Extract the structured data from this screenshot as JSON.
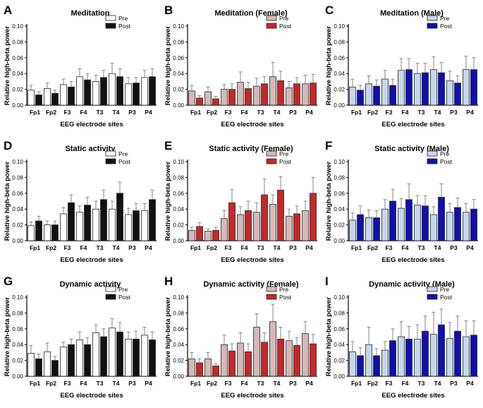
{
  "figure": {
    "shared": {
      "xlabel": "EEG electrode sites",
      "ylabel": "Relative high-beta power",
      "categories": [
        "Fp1",
        "Fp2",
        "F3",
        "F4",
        "T3",
        "T4",
        "P3",
        "P4"
      ],
      "yticks": [
        "0.00",
        "0.02",
        "0.04",
        "0.06",
        "0.08",
        "0.10"
      ],
      "legend": [
        "Pre",
        "Post"
      ]
    }
  },
  "chart_data": [
    {
      "panel": "A",
      "type": "bar",
      "title": "Meditation",
      "xlabel": "EEG electrode sites",
      "ylabel": "Relative high-beta power",
      "ylim": [
        0,
        0.1
      ],
      "categories": [
        "Fp1",
        "Fp2",
        "F3",
        "F4",
        "T3",
        "T4",
        "P3",
        "P4"
      ],
      "series": [
        {
          "name": "Pre",
          "color": "#ffffff",
          "values": [
            0.019,
            0.021,
            0.026,
            0.036,
            0.03,
            0.04,
            0.027,
            0.035
          ],
          "errors": [
            0.006,
            0.007,
            0.007,
            0.01,
            0.008,
            0.013,
            0.008,
            0.009
          ]
        },
        {
          "name": "Post",
          "color": "#111111",
          "values": [
            0.013,
            0.015,
            0.023,
            0.032,
            0.035,
            0.036,
            0.028,
            0.036
          ],
          "errors": [
            0.004,
            0.004,
            0.007,
            0.008,
            0.009,
            0.01,
            0.007,
            0.01
          ]
        }
      ]
    },
    {
      "panel": "B",
      "type": "bar",
      "title": "Meditation (Female)",
      "xlabel": "EEG electrode sites",
      "ylabel": "Relative high-beta power",
      "ylim": [
        0,
        0.1
      ],
      "categories": [
        "Fp1",
        "Fp2",
        "F3",
        "F4",
        "T3",
        "T4",
        "P3",
        "P4"
      ],
      "series": [
        {
          "name": "Pre",
          "color": "#d6b8b8",
          "values": [
            0.018,
            0.017,
            0.02,
            0.029,
            0.024,
            0.036,
            0.022,
            0.027
          ],
          "errors": [
            0.007,
            0.006,
            0.006,
            0.013,
            0.01,
            0.018,
            0.008,
            0.011
          ]
        },
        {
          "name": "Post",
          "color": "#c62828",
          "values": [
            0.009,
            0.008,
            0.02,
            0.021,
            0.027,
            0.031,
            0.027,
            0.028
          ],
          "errors": [
            0.003,
            0.003,
            0.007,
            0.008,
            0.009,
            0.012,
            0.008,
            0.011
          ]
        }
      ]
    },
    {
      "panel": "C",
      "type": "bar",
      "title": "Meditation (Male)",
      "xlabel": "EEG electrode sites",
      "ylabel": "Relative high-beta power",
      "ylim": [
        0,
        0.1
      ],
      "categories": [
        "Fp1",
        "Fp2",
        "F3",
        "F4",
        "T3",
        "T4",
        "P3",
        "P4"
      ],
      "series": [
        {
          "name": "Pre",
          "color": "#c5d7ee",
          "values": [
            0.023,
            0.027,
            0.033,
            0.044,
            0.04,
            0.045,
            0.031,
            0.045
          ],
          "errors": [
            0.01,
            0.01,
            0.011,
            0.015,
            0.013,
            0.016,
            0.012,
            0.017
          ]
        },
        {
          "name": "Post",
          "color": "#1010b0",
          "values": [
            0.019,
            0.024,
            0.025,
            0.045,
            0.041,
            0.041,
            0.028,
            0.045
          ],
          "errors": [
            0.006,
            0.008,
            0.008,
            0.014,
            0.012,
            0.013,
            0.009,
            0.015
          ]
        }
      ]
    },
    {
      "panel": "D",
      "type": "bar",
      "title": "Static activity",
      "xlabel": "EEG electrode sites",
      "ylabel": "Relative high-beta power",
      "ylim": [
        0,
        0.1
      ],
      "categories": [
        "Fp1",
        "Fp2",
        "F3",
        "F4",
        "T3",
        "T4",
        "P3",
        "P4"
      ],
      "series": [
        {
          "name": "Pre",
          "color": "#ffffff",
          "values": [
            0.019,
            0.02,
            0.034,
            0.036,
            0.04,
            0.04,
            0.033,
            0.038
          ],
          "errors": [
            0.005,
            0.005,
            0.008,
            0.008,
            0.01,
            0.01,
            0.008,
            0.009
          ]
        },
        {
          "name": "Post",
          "color": "#111111",
          "values": [
            0.025,
            0.02,
            0.048,
            0.045,
            0.052,
            0.06,
            0.038,
            0.052
          ],
          "errors": [
            0.006,
            0.005,
            0.01,
            0.01,
            0.012,
            0.014,
            0.009,
            0.012
          ]
        }
      ]
    },
    {
      "panel": "E",
      "type": "bar",
      "title": "Static activity (Female)",
      "xlabel": "EEG electrode sites",
      "ylabel": "Relative high-beta power",
      "ylim": [
        0,
        0.1
      ],
      "categories": [
        "Fp1",
        "Fp2",
        "F3",
        "F4",
        "T3",
        "T4",
        "P3",
        "P4"
      ],
      "series": [
        {
          "name": "Pre",
          "color": "#d6b8b8",
          "values": [
            0.013,
            0.012,
            0.028,
            0.033,
            0.036,
            0.046,
            0.031,
            0.038
          ],
          "errors": [
            0.004,
            0.003,
            0.01,
            0.01,
            0.012,
            0.012,
            0.009,
            0.012
          ]
        },
        {
          "name": "Post",
          "color": "#c62828",
          "values": [
            0.018,
            0.013,
            0.048,
            0.038,
            0.058,
            0.064,
            0.034,
            0.06
          ],
          "errors": [
            0.005,
            0.004,
            0.017,
            0.012,
            0.02,
            0.017,
            0.01,
            0.02
          ]
        }
      ]
    },
    {
      "panel": "F",
      "type": "bar",
      "title": "Static activity (Male)",
      "xlabel": "EEG electrode sites",
      "ylabel": "Relative high-beta power",
      "ylim": [
        0,
        0.1
      ],
      "categories": [
        "Fp1",
        "Fp2",
        "F3",
        "F4",
        "T3",
        "T4",
        "P3",
        "P4"
      ],
      "series": [
        {
          "name": "Pre",
          "color": "#c5d7ee",
          "values": [
            0.026,
            0.029,
            0.04,
            0.041,
            0.045,
            0.033,
            0.036,
            0.036
          ],
          "errors": [
            0.009,
            0.01,
            0.012,
            0.012,
            0.012,
            0.01,
            0.011,
            0.011
          ]
        },
        {
          "name": "Post",
          "color": "#1010b0",
          "values": [
            0.033,
            0.029,
            0.05,
            0.052,
            0.044,
            0.055,
            0.042,
            0.04
          ],
          "errors": [
            0.011,
            0.009,
            0.015,
            0.02,
            0.013,
            0.017,
            0.012,
            0.012
          ]
        }
      ]
    },
    {
      "panel": "G",
      "type": "bar",
      "title": "Dynamic activity",
      "xlabel": "EEG electrode sites",
      "ylabel": "Relative high-beta power",
      "ylim": [
        0,
        0.1
      ],
      "categories": [
        "Fp1",
        "Fp2",
        "F3",
        "F4",
        "T3",
        "T4",
        "P3",
        "P4"
      ],
      "series": [
        {
          "name": "Pre",
          "color": "#ffffff",
          "values": [
            0.029,
            0.031,
            0.037,
            0.046,
            0.055,
            0.061,
            0.047,
            0.052
          ],
          "errors": [
            0.01,
            0.011,
            0.006,
            0.01,
            0.01,
            0.012,
            0.009,
            0.01
          ]
        },
        {
          "name": "Post",
          "color": "#111111",
          "values": [
            0.022,
            0.02,
            0.04,
            0.04,
            0.05,
            0.056,
            0.047,
            0.046
          ],
          "errors": [
            0.006,
            0.005,
            0.007,
            0.009,
            0.01,
            0.012,
            0.01,
            0.01
          ]
        }
      ]
    },
    {
      "panel": "H",
      "type": "bar",
      "title": "Dynamic activity (Female)",
      "xlabel": "EEG electrode sites",
      "ylabel": "Relative high-beta power",
      "ylim": [
        0,
        0.1
      ],
      "categories": [
        "Fp1",
        "Fp2",
        "F3",
        "F4",
        "T3",
        "T4",
        "P3",
        "P4"
      ],
      "series": [
        {
          "name": "Pre",
          "color": "#d6b8b8",
          "values": [
            0.022,
            0.022,
            0.04,
            0.042,
            0.062,
            0.069,
            0.045,
            0.054
          ],
          "errors": [
            0.008,
            0.008,
            0.012,
            0.013,
            0.017,
            0.022,
            0.012,
            0.015
          ]
        },
        {
          "name": "Post",
          "color": "#c62828",
          "values": [
            0.017,
            0.013,
            0.032,
            0.031,
            0.043,
            0.047,
            0.039,
            0.041
          ],
          "errors": [
            0.005,
            0.003,
            0.009,
            0.01,
            0.012,
            0.015,
            0.01,
            0.012
          ]
        }
      ]
    },
    {
      "panel": "I",
      "type": "bar",
      "title": "Dynamic activity (Male)",
      "xlabel": "EEG electrode sites",
      "ylabel": "Relative high-beta power",
      "ylim": [
        0,
        0.1
      ],
      "categories": [
        "Fp1",
        "Fp2",
        "F3",
        "F4",
        "T3",
        "T4",
        "P3",
        "P4"
      ],
      "series": [
        {
          "name": "Pre",
          "color": "#c5d7ee",
          "values": [
            0.031,
            0.04,
            0.033,
            0.05,
            0.047,
            0.053,
            0.048,
            0.05
          ],
          "errors": [
            0.013,
            0.022,
            0.011,
            0.019,
            0.018,
            0.028,
            0.02,
            0.02
          ]
        },
        {
          "name": "Post",
          "color": "#1010b0",
          "values": [
            0.026,
            0.026,
            0.045,
            0.047,
            0.057,
            0.065,
            0.057,
            0.052
          ],
          "errors": [
            0.01,
            0.009,
            0.015,
            0.016,
            0.019,
            0.02,
            0.019,
            0.018
          ]
        }
      ]
    }
  ]
}
